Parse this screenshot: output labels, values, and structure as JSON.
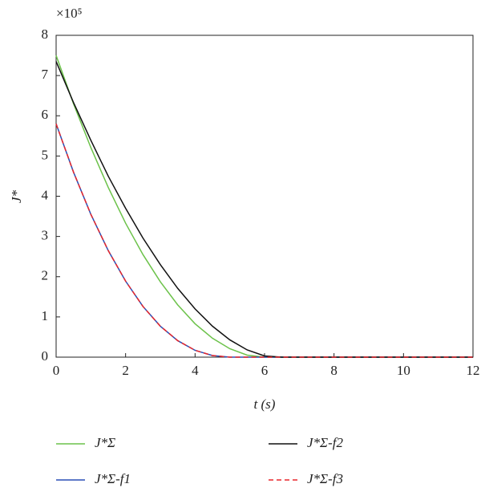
{
  "chart_data": {
    "type": "line",
    "axis_multiplier": "×10⁵",
    "xlabel": "t (s)",
    "ylabel": "J*",
    "x": [
      0,
      0.5,
      1,
      1.5,
      2,
      2.5,
      3,
      3.5,
      4,
      4.5,
      5,
      5.5,
      6,
      6.5,
      7,
      7.5,
      8,
      8.5,
      9,
      9.5,
      10,
      10.5,
      11,
      11.5,
      12
    ],
    "series": [
      {
        "name": "J*Σ",
        "color": "#6cc24a",
        "dash": false,
        "values": [
          7.5,
          6.3,
          5.21,
          4.22,
          3.33,
          2.55,
          1.875,
          1.3,
          0.83,
          0.47,
          0.21,
          0.05,
          0,
          0,
          0,
          0,
          0,
          0,
          0,
          0,
          0,
          0,
          0,
          0,
          0
        ]
      },
      {
        "name": "J*Σ-f1",
        "color": "#2a4fb5",
        "dash": false,
        "values": [
          5.8,
          4.6,
          3.55,
          2.65,
          1.89,
          1.26,
          0.77,
          0.41,
          0.17,
          0.04,
          0,
          0,
          0,
          0,
          0,
          0,
          0,
          0,
          0,
          0,
          0,
          0,
          0,
          0,
          0
        ]
      },
      {
        "name": "J*Σ-f2",
        "color": "#111111",
        "dash": false,
        "values": [
          7.35,
          6.33,
          5.39,
          4.5,
          3.7,
          2.96,
          2.3,
          1.71,
          1.2,
          0.77,
          0.43,
          0.18,
          0.03,
          0,
          0,
          0,
          0,
          0,
          0,
          0,
          0,
          0,
          0,
          0,
          0
        ]
      },
      {
        "name": "J*Σ-f3",
        "color": "#e8262b",
        "dash": true,
        "values": [
          5.8,
          4.6,
          3.55,
          2.65,
          1.89,
          1.26,
          0.77,
          0.41,
          0.17,
          0.04,
          0,
          0,
          0,
          0,
          0,
          0,
          0,
          0,
          0,
          0,
          0,
          0,
          0,
          0,
          0
        ]
      }
    ],
    "xlim": [
      0,
      12
    ],
    "xticks": [
      0,
      2,
      4,
      6,
      8,
      10,
      12
    ],
    "ylim": [
      0,
      8
    ],
    "yticks": [
      0,
      1,
      2,
      3,
      4,
      5,
      6,
      7,
      8
    ],
    "grid": false,
    "legend_position": "bottom"
  }
}
